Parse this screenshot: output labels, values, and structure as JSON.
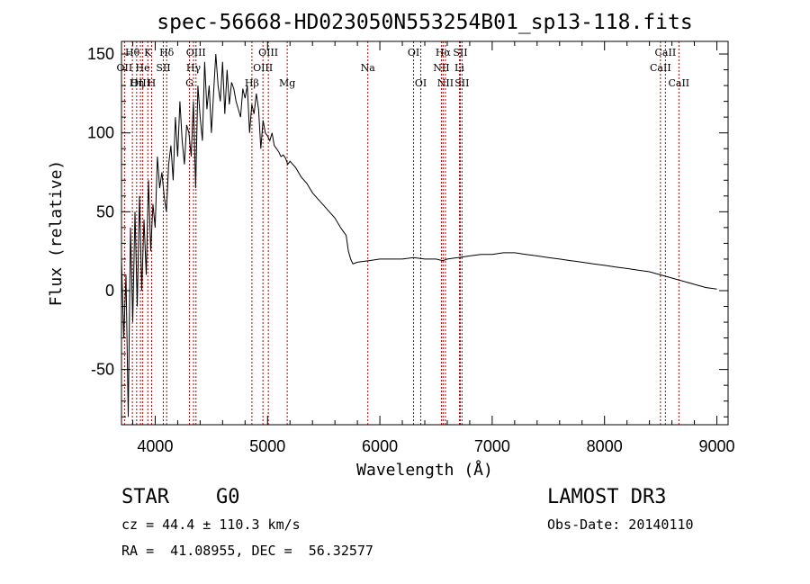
{
  "chart_data": {
    "type": "line",
    "title": "spec-56668-HD023050N553254B01_sp13-118.fits",
    "xlabel": "Wavelength (Å)",
    "ylabel": "Flux (relative)",
    "xlim": [
      3700,
      9100
    ],
    "ylim": [
      -85,
      158
    ],
    "xticks": [
      4000,
      5000,
      6000,
      7000,
      8000,
      9000
    ],
    "yticks": [
      -50,
      0,
      50,
      100,
      150
    ],
    "series": [
      {
        "name": "flux",
        "x": [
          3700,
          3720,
          3740,
          3760,
          3780,
          3800,
          3820,
          3840,
          3860,
          3880,
          3900,
          3920,
          3940,
          3960,
          3980,
          4000,
          4020,
          4040,
          4060,
          4080,
          4100,
          4120,
          4140,
          4160,
          4180,
          4200,
          4220,
          4240,
          4260,
          4280,
          4300,
          4320,
          4340,
          4360,
          4380,
          4400,
          4420,
          4440,
          4460,
          4480,
          4500,
          4520,
          4540,
          4560,
          4580,
          4600,
          4620,
          4640,
          4660,
          4680,
          4700,
          4720,
          4740,
          4760,
          4780,
          4800,
          4820,
          4840,
          4860,
          4880,
          4900,
          4920,
          4940,
          4960,
          4980,
          5000,
          5020,
          5040,
          5060,
          5080,
          5100,
          5120,
          5140,
          5160,
          5180,
          5200,
          5250,
          5300,
          5350,
          5400,
          5450,
          5500,
          5550,
          5600,
          5650,
          5700,
          5720,
          5740,
          5760,
          5800,
          5900,
          6000,
          6100,
          6200,
          6300,
          6400,
          6500,
          6560,
          6600,
          6700,
          6800,
          6900,
          7000,
          7100,
          7200,
          7300,
          7400,
          7500,
          7600,
          7700,
          7800,
          7900,
          8000,
          8100,
          8200,
          8300,
          8400,
          8500,
          8600,
          8700,
          8800,
          8900,
          9000
        ],
        "y": [
          20,
          -30,
          10,
          -80,
          40,
          -20,
          50,
          -10,
          60,
          0,
          45,
          10,
          70,
          25,
          55,
          40,
          85,
          65,
          75,
          60,
          50,
          80,
          92,
          70,
          110,
          85,
          120,
          95,
          80,
          105,
          100,
          85,
          120,
          65,
          130,
          110,
          95,
          145,
          115,
          130,
          100,
          125,
          150,
          130,
          120,
          145,
          112,
          140,
          118,
          132,
          128,
          120,
          115,
          110,
          128,
          122,
          130,
          100,
          118,
          112,
          125,
          115,
          90,
          108,
          100,
          98,
          95,
          100,
          92,
          90,
          88,
          85,
          86,
          84,
          80,
          82,
          78,
          72,
          68,
          62,
          58,
          54,
          50,
          46,
          40,
          35,
          25,
          20,
          17,
          18,
          19,
          20,
          20,
          20,
          21,
          20,
          20,
          19,
          20,
          21,
          22,
          23,
          23,
          24,
          24,
          23,
          22,
          21,
          20,
          19,
          18,
          17,
          16,
          15,
          14,
          13,
          12,
          10,
          8,
          6,
          4,
          2,
          1
        ]
      }
    ],
    "lines": [
      {
        "name": "Hθ",
        "x": 3797,
        "row": 0
      },
      {
        "name": "OII",
        "x": 3727,
        "row": 1
      },
      {
        "name": "OIII",
        "x": 3869,
        "row": 2
      },
      {
        "name": "Hη",
        "x": 3835,
        "row": 2
      },
      {
        "name": "K",
        "x": 3934,
        "row": 0
      },
      {
        "name": "H",
        "x": 3968,
        "row": 2
      },
      {
        "name": "He",
        "x": 3889,
        "row": 1
      },
      {
        "name": "SII",
        "x": 4072,
        "row": 1
      },
      {
        "name": "Hδ",
        "x": 4102,
        "row": 0
      },
      {
        "name": "OIII",
        "x": 4363,
        "row": 0
      },
      {
        "name": "Hγ",
        "x": 4341,
        "row": 1
      },
      {
        "name": "G",
        "x": 4305,
        "row": 2
      },
      {
        "name": "OIII",
        "x": 5007,
        "row": 0
      },
      {
        "name": "OIII",
        "x": 4959,
        "row": 1
      },
      {
        "name": "Hβ",
        "x": 4861,
        "row": 2
      },
      {
        "name": "Mg",
        "x": 5175,
        "row": 2
      },
      {
        "name": "Na",
        "x": 5893,
        "row": 1
      },
      {
        "name": "OI",
        "x": 6300,
        "row": 0
      },
      {
        "name": "OI",
        "x": 6364,
        "row": 2
      },
      {
        "name": "Hα",
        "x": 6563,
        "row": 0
      },
      {
        "name": "SII",
        "x": 6716,
        "row": 0
      },
      {
        "name": "NII",
        "x": 6548,
        "row": 1
      },
      {
        "name": "Li",
        "x": 6708,
        "row": 1
      },
      {
        "name": "NII",
        "x": 6584,
        "row": 2
      },
      {
        "name": "SII",
        "x": 6731,
        "row": 2
      },
      {
        "name": "CaII",
        "x": 8542,
        "row": 0
      },
      {
        "name": "CaII",
        "x": 8498,
        "row": 1
      },
      {
        "name": "CaII",
        "x": 8662,
        "row": 2
      }
    ]
  },
  "info": {
    "object_class": "STAR",
    "subclass": "G0",
    "survey": "LAMOST DR3",
    "cz": "cz = 44.4 ± 110.3 km/s",
    "obs_date": "Obs-Date: 20140110",
    "radec": "RA =  41.08955, DEC =  56.32577"
  },
  "colors": {
    "line_marker": "#b40000",
    "spectrum": "#000000"
  }
}
